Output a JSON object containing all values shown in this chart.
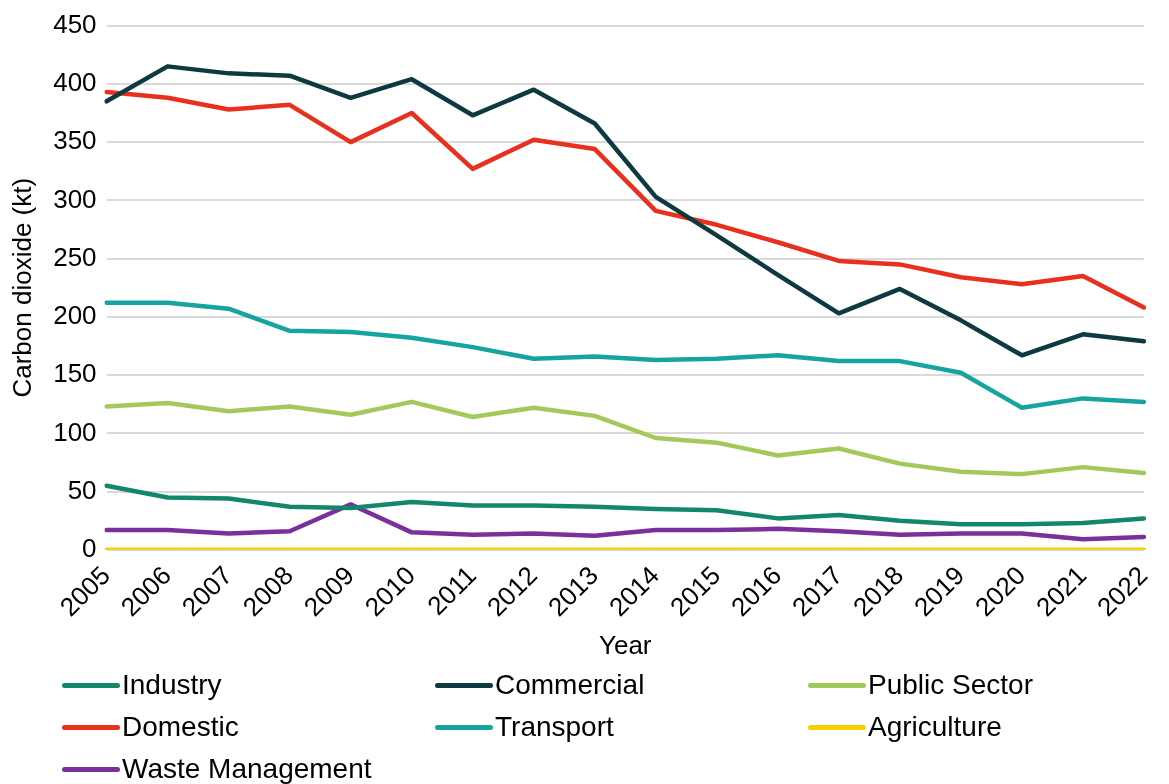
{
  "chart_data": {
    "type": "line",
    "xlabel": "Year",
    "ylabel": "Carbon dioxide (kt)",
    "categories": [
      "2005",
      "2006",
      "2007",
      "2008",
      "2009",
      "2010",
      "2011",
      "2012",
      "2013",
      "2014",
      "2015",
      "2016",
      "2017",
      "2018",
      "2019",
      "2020",
      "2021",
      "2022"
    ],
    "ylim": [
      0,
      450
    ],
    "yticks": [
      0,
      50,
      100,
      150,
      200,
      250,
      300,
      350,
      400,
      450
    ],
    "grid": "y",
    "legend": "bottom",
    "marker": "none",
    "line_style": "solid",
    "series": [
      {
        "name": "Industry",
        "color": "#12876a",
        "values": [
          55,
          45,
          44,
          37,
          36,
          41,
          38,
          38,
          37,
          35,
          34,
          27,
          30,
          25,
          22,
          22,
          23,
          27
        ]
      },
      {
        "name": "Commercial",
        "color": "#0d3a40",
        "values": [
          385,
          415,
          409,
          407,
          388,
          404,
          373,
          395,
          366,
          303,
          270,
          236,
          203,
          224,
          197,
          167,
          185,
          179
        ]
      },
      {
        "name": "Public Sector",
        "color": "#a3c95a",
        "values": [
          123,
          126,
          119,
          123,
          116,
          127,
          114,
          122,
          115,
          96,
          92,
          81,
          87,
          74,
          67,
          65,
          71,
          66
        ]
      },
      {
        "name": "Domestic",
        "color": "#e8301e",
        "values": [
          393,
          388,
          378,
          382,
          350,
          375,
          327,
          352,
          344,
          291,
          279,
          264,
          248,
          245,
          234,
          228,
          235,
          208
        ]
      },
      {
        "name": "Transport",
        "color": "#17a4a0",
        "values": [
          212,
          212,
          207,
          188,
          187,
          182,
          174,
          164,
          166,
          163,
          164,
          167,
          162,
          162,
          152,
          122,
          130,
          127
        ]
      },
      {
        "name": "Agriculture",
        "color": "#f5d000",
        "values": [
          0,
          0,
          0,
          0,
          0,
          0,
          0,
          0,
          0,
          0,
          0,
          0,
          0,
          0,
          0,
          0,
          0,
          0
        ]
      },
      {
        "name": "Waste Management",
        "color": "#7b2f9a",
        "values": [
          17,
          17,
          14,
          16,
          39,
          15,
          13,
          14,
          12,
          17,
          17,
          18,
          16,
          13,
          14,
          14,
          9,
          11
        ]
      }
    ]
  }
}
